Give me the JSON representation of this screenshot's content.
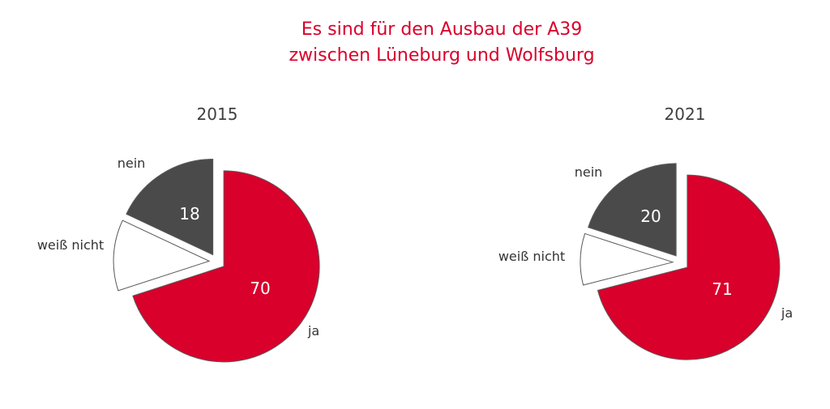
{
  "title_line1": "Es sind für den Ausbau der A39",
  "title_line2": "zwischen Lüneburg und Wolfsburg",
  "colors": {
    "ja": "#d9002b",
    "nein": "#4a4a4a",
    "weiss_nicht": "#ffffff",
    "title": "#d9002b"
  },
  "chart_data": [
    {
      "type": "pie",
      "title": "2015",
      "slices": [
        {
          "name": "ja",
          "value": 70,
          "label": "70",
          "color": "#d9002b"
        },
        {
          "name": "weiß nicht",
          "value": 12,
          "label": "",
          "color": "#ffffff"
        },
        {
          "name": "nein",
          "value": 18,
          "label": "18",
          "color": "#4a4a4a"
        }
      ]
    },
    {
      "type": "pie",
      "title": "2021",
      "slices": [
        {
          "name": "ja",
          "value": 71,
          "label": "71",
          "color": "#d9002b"
        },
        {
          "name": "weiß nicht",
          "value": 9,
          "label": "",
          "color": "#ffffff"
        },
        {
          "name": "nein",
          "value": 20,
          "label": "20",
          "color": "#4a4a4a"
        }
      ]
    }
  ]
}
